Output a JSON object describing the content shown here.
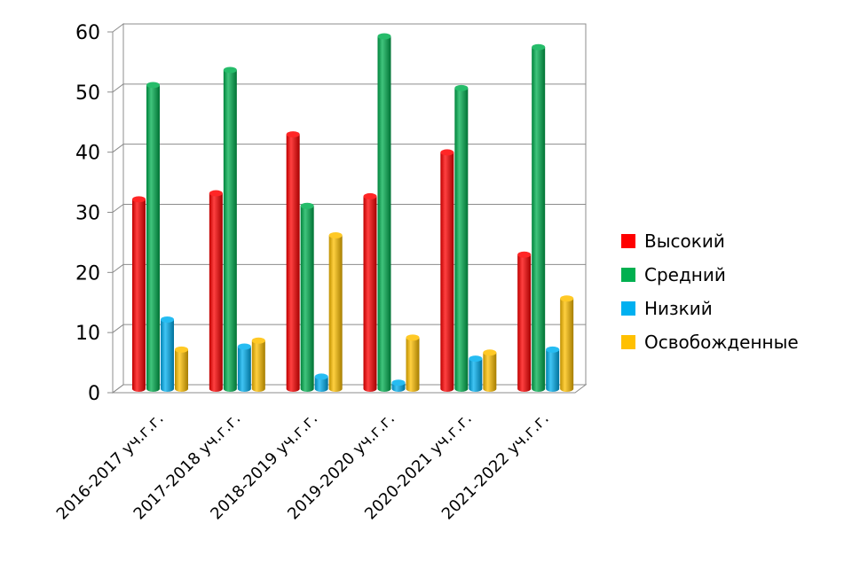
{
  "chart_data": {
    "type": "bar",
    "categories": [
      "2016-2017 уч.г.г.",
      "2017-2018 уч.г.г.",
      "2018-2019 уч.г.г.",
      "2019-2020 уч.г.г.",
      "2020-2021 уч.г.г.",
      "2021-2022 уч.г.г."
    ],
    "series": [
      {
        "name": "Высокий",
        "color": "#ff0000",
        "values": [
          31.5,
          32.5,
          42.3,
          32,
          39.3,
          22.3
        ]
      },
      {
        "name": "Средний",
        "color": "#00b050",
        "values": [
          50.5,
          53,
          30.4,
          58.6,
          50,
          56.8
        ]
      },
      {
        "name": "Низкий",
        "color": "#00b0f0",
        "values": [
          11.5,
          7,
          2,
          1,
          5,
          6.5
        ]
      },
      {
        "name": "Освобожденные",
        "color": "#ffc000",
        "values": [
          6.5,
          8,
          25.5,
          8.5,
          6,
          15
        ]
      }
    ],
    "ylim": [
      0,
      60
    ],
    "yticks": [
      0,
      10,
      20,
      30,
      40,
      50,
      60
    ],
    "grid": true,
    "legend": "right"
  }
}
